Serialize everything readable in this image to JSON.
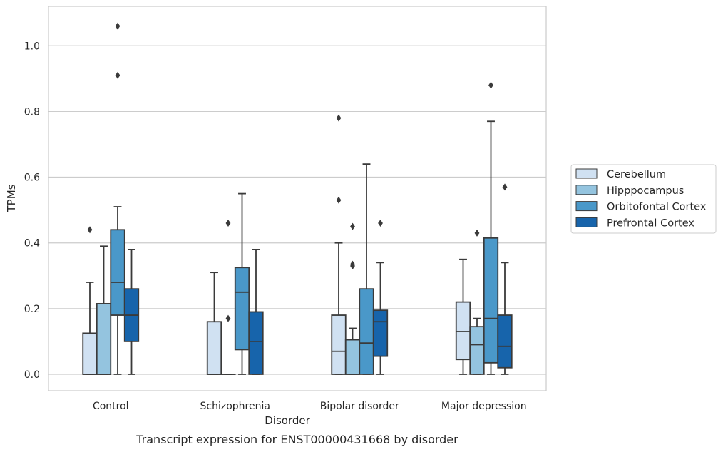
{
  "chart_data": {
    "type": "box",
    "caption": "Transcript expression for ENST00000431668 by disorder",
    "xlabel": "Disorder",
    "ylabel": "TPMs",
    "ylim": [
      -0.05,
      1.12
    ],
    "yticks": [
      0.0,
      0.2,
      0.4,
      0.6,
      0.8,
      1.0
    ],
    "ytick_labels": [
      "0.0",
      "0.2",
      "0.4",
      "0.6",
      "0.8",
      "1.0"
    ],
    "grid": "horizontal",
    "legend_position": "right",
    "categories": [
      "Control",
      "Schizophrenia",
      "Bipolar disorder",
      "Major depression"
    ],
    "series": [
      {
        "name": "Cerebellum",
        "color": "#d0e1f2",
        "boxes": [
          {
            "q1": 0.0,
            "median": 0.0,
            "q3": 0.125,
            "whislo": 0.0,
            "whishi": 0.28,
            "fliers": [
              0.44
            ]
          },
          {
            "q1": 0.0,
            "median": 0.0,
            "q3": 0.16,
            "whislo": 0.0,
            "whishi": 0.31,
            "fliers": []
          },
          {
            "q1": 0.0,
            "median": 0.07,
            "q3": 0.18,
            "whislo": 0.0,
            "whishi": 0.4,
            "fliers": [
              0.53,
              0.78
            ]
          },
          {
            "q1": 0.045,
            "median": 0.13,
            "q3": 0.22,
            "whislo": 0.0,
            "whishi": 0.35,
            "fliers": []
          }
        ]
      },
      {
        "name": "Hipppocampus",
        "color": "#94c4df",
        "boxes": [
          {
            "q1": 0.0,
            "median": 0.0,
            "q3": 0.215,
            "whislo": 0.0,
            "whishi": 0.39,
            "fliers": []
          },
          {
            "q1": 0.0,
            "median": 0.0,
            "q3": 0.0,
            "whislo": 0.0,
            "whishi": 0.0,
            "fliers": [
              0.17,
              0.46
            ]
          },
          {
            "q1": 0.0,
            "median": 0.0,
            "q3": 0.105,
            "whislo": 0.0,
            "whishi": 0.14,
            "fliers": [
              0.33,
              0.335,
              0.45
            ]
          },
          {
            "q1": 0.0,
            "median": 0.09,
            "q3": 0.145,
            "whislo": 0.0,
            "whishi": 0.17,
            "fliers": [
              0.43
            ]
          }
        ]
      },
      {
        "name": "Orbitofontal Cortex",
        "color": "#4a98c9",
        "boxes": [
          {
            "q1": 0.18,
            "median": 0.28,
            "q3": 0.44,
            "whislo": 0.0,
            "whishi": 0.51,
            "fliers": [
              0.91,
              1.06
            ]
          },
          {
            "q1": 0.075,
            "median": 0.25,
            "q3": 0.325,
            "whislo": 0.0,
            "whishi": 0.55,
            "fliers": []
          },
          {
            "q1": 0.0,
            "median": 0.095,
            "q3": 0.26,
            "whislo": 0.0,
            "whishi": 0.64,
            "fliers": []
          },
          {
            "q1": 0.035,
            "median": 0.17,
            "q3": 0.415,
            "whislo": 0.0,
            "whishi": 0.77,
            "fliers": [
              0.88
            ]
          }
        ]
      },
      {
        "name": "Prefrontal Cortex",
        "color": "#1764ab",
        "boxes": [
          {
            "q1": 0.1,
            "median": 0.18,
            "q3": 0.26,
            "whislo": 0.0,
            "whishi": 0.38,
            "fliers": []
          },
          {
            "q1": 0.0,
            "median": 0.1,
            "q3": 0.19,
            "whislo": 0.0,
            "whishi": 0.38,
            "fliers": []
          },
          {
            "q1": 0.055,
            "median": 0.16,
            "q3": 0.195,
            "whislo": 0.0,
            "whishi": 0.34,
            "fliers": [
              0.46
            ]
          },
          {
            "q1": 0.02,
            "median": 0.085,
            "q3": 0.18,
            "whislo": 0.0,
            "whishi": 0.34,
            "fliers": [
              0.57
            ]
          }
        ]
      }
    ]
  }
}
